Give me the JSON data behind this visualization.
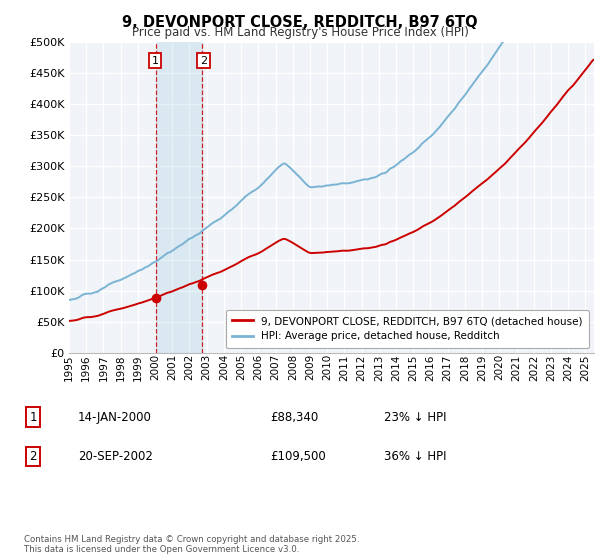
{
  "title": "9, DEVONPORT CLOSE, REDDITCH, B97 6TQ",
  "subtitle": "Price paid vs. HM Land Registry's House Price Index (HPI)",
  "ylim": [
    0,
    500000
  ],
  "yticks": [
    0,
    50000,
    100000,
    150000,
    200000,
    250000,
    300000,
    350000,
    400000,
    450000,
    500000
  ],
  "hpi_color": "#7ab3d4",
  "price_color": "#cc0000",
  "background_color": "#f0f4f8",
  "sale1_year": 2000.04,
  "sale1_price": 88340,
  "sale2_year": 2002.72,
  "sale2_price": 109500,
  "legend_line1": "9, DEVONPORT CLOSE, REDDITCH, B97 6TQ (detached house)",
  "legend_line2": "HPI: Average price, detached house, Redditch",
  "annotation1_date": "14-JAN-2000",
  "annotation1_price": "£88,340",
  "annotation1_hpi": "23% ↓ HPI",
  "annotation2_date": "20-SEP-2002",
  "annotation2_price": "£109,500",
  "annotation2_hpi": "36% ↓ HPI",
  "copyright_text": "Contains HM Land Registry data © Crown copyright and database right 2025.\nThis data is licensed under the Open Government Licence v3.0.",
  "xlim_left": 1995.0,
  "xlim_right": 2025.5
}
